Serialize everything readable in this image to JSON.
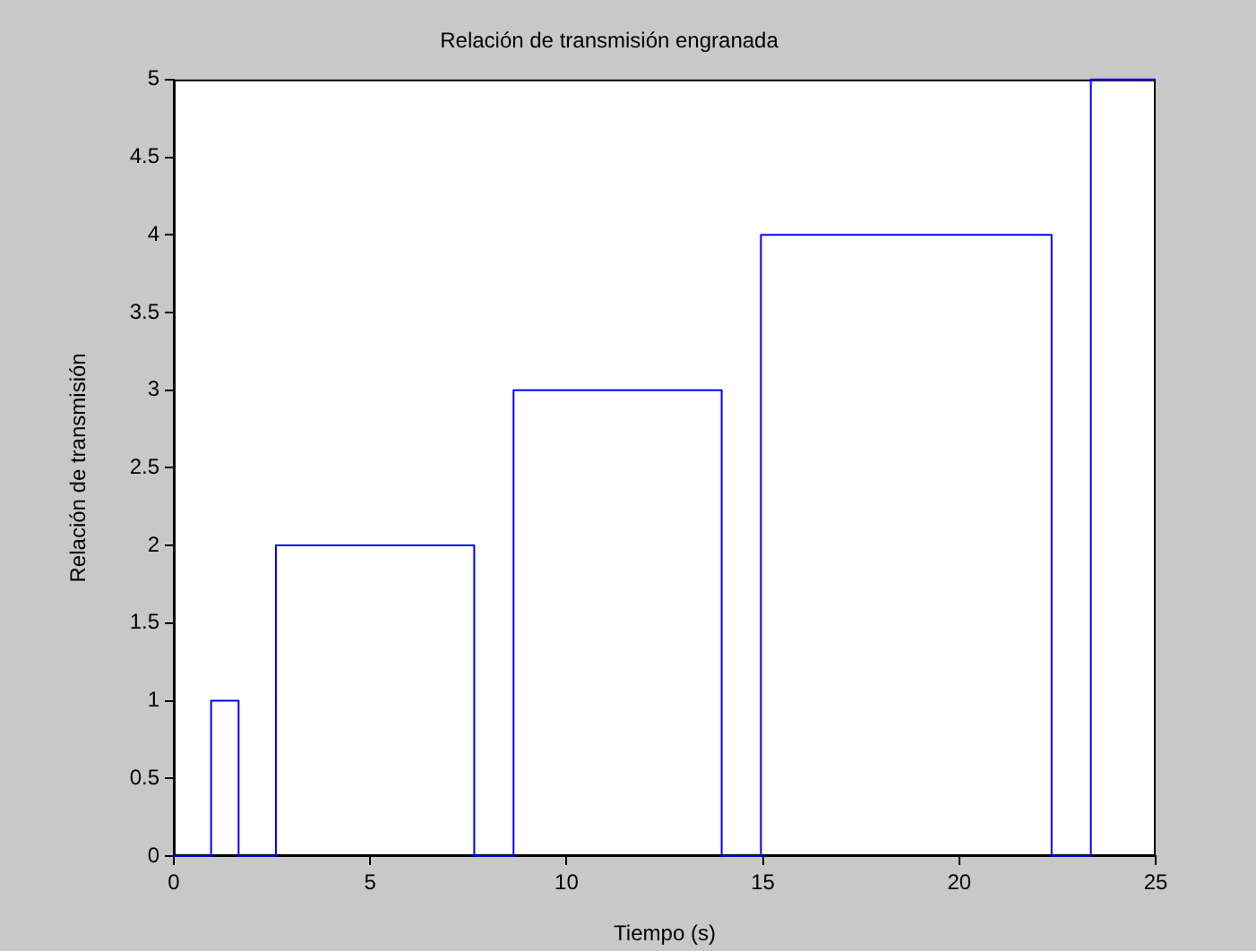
{
  "chart_data": {
    "type": "line",
    "title": "Relación de transmisión engranada",
    "xlabel": "Tiempo (s)",
    "ylabel": "Relación de transmisión",
    "x": [
      0,
      0.95,
      0.95,
      1.65,
      1.65,
      2.6,
      2.6,
      7.65,
      7.65,
      8.65,
      8.65,
      13.95,
      13.95,
      14.95,
      14.95,
      22.35,
      22.35,
      23.35,
      23.35,
      25
    ],
    "series": [
      {
        "color": "#0000ff",
        "values": [
          0,
          0,
          1,
          1,
          0,
          0,
          2,
          2,
          0,
          0,
          3,
          3,
          0,
          0,
          4,
          4,
          0,
          0,
          5,
          5
        ]
      }
    ],
    "xlim": [
      0,
      25
    ],
    "xticks": [
      0,
      5,
      10,
      15,
      20,
      25
    ],
    "ylim": [
      0,
      5
    ],
    "yticks": [
      0,
      0.5,
      1,
      1.5,
      2,
      2.5,
      3,
      3.5,
      4,
      4.5,
      5
    ],
    "grid": false,
    "legend": false,
    "marker": "none",
    "line_style": "solid"
  }
}
